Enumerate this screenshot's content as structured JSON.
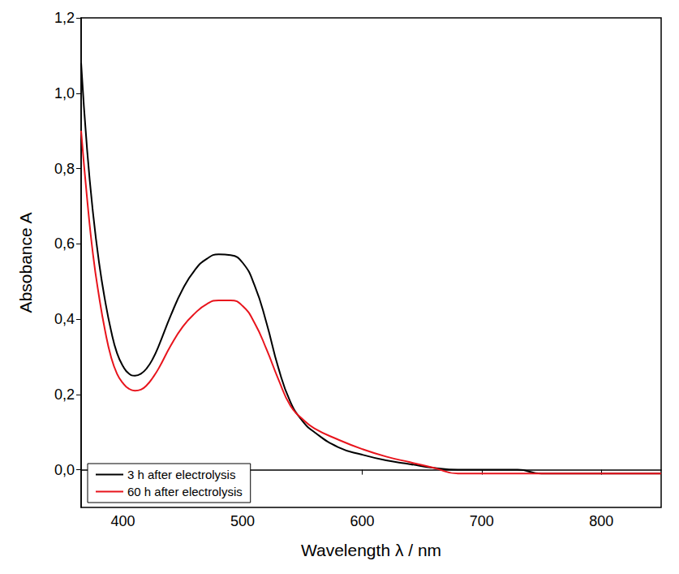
{
  "chart_data": {
    "type": "line",
    "x_label": "Wavelength λ / nm",
    "y_label": "Absobance A",
    "xlim": [
      365,
      850
    ],
    "xticks": [
      400,
      500,
      600,
      700,
      800
    ],
    "ylim": [
      -0.1,
      1.2
    ],
    "yticks": [
      {
        "value": 0,
        "label": "0,0"
      },
      {
        "value": 0.2,
        "label": "0,2"
      },
      {
        "value": 0.4,
        "label": "0,4"
      },
      {
        "value": 0.6,
        "label": "0,6"
      },
      {
        "value": 0.8,
        "label": "0,8"
      },
      {
        "value": 1.0,
        "label": "1,0"
      },
      {
        "value": 1.2,
        "label": "1,2"
      }
    ],
    "grid": false,
    "legend": "lower left",
    "marker": "none",
    "x": [
      365,
      370,
      375,
      380,
      385,
      390,
      395,
      400,
      405,
      410,
      415,
      420,
      425,
      430,
      440,
      450,
      460,
      470,
      480,
      490,
      500,
      510,
      520,
      530,
      540,
      550,
      560,
      580,
      600,
      620,
      640,
      660,
      680,
      700,
      730,
      750,
      800,
      850
    ],
    "series": [
      {
        "name": "3 h after electrolysis",
        "color": "#000000",
        "line_style": "solid",
        "values": [
          1.08,
          0.85,
          0.68,
          0.55,
          0.45,
          0.37,
          0.31,
          0.275,
          0.255,
          0.25,
          0.255,
          0.27,
          0.295,
          0.33,
          0.41,
          0.48,
          0.53,
          0.56,
          0.572,
          0.57,
          0.55,
          0.49,
          0.39,
          0.27,
          0.18,
          0.13,
          0.1,
          0.06,
          0.04,
          0.025,
          0.015,
          0.005,
          0.0,
          0.0,
          0.0,
          -0.01,
          -0.01,
          -0.01
        ]
      },
      {
        "name": "60 h after electrolysis",
        "color": "#e8141c",
        "line_style": "solid",
        "values": [
          0.9,
          0.72,
          0.57,
          0.46,
          0.37,
          0.3,
          0.255,
          0.23,
          0.215,
          0.21,
          0.213,
          0.225,
          0.245,
          0.27,
          0.33,
          0.38,
          0.415,
          0.44,
          0.45,
          0.45,
          0.435,
          0.39,
          0.32,
          0.24,
          0.17,
          0.135,
          0.11,
          0.08,
          0.055,
          0.035,
          0.02,
          0.005,
          -0.01,
          -0.01,
          -0.01,
          -0.01,
          -0.01,
          -0.01
        ]
      }
    ]
  }
}
